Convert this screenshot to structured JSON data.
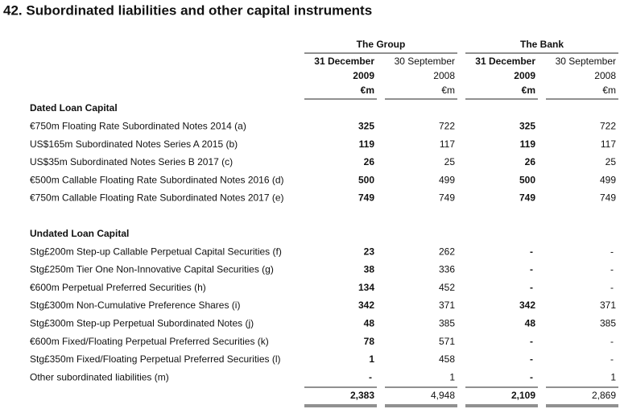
{
  "title": "42.  Subordinated liabilities and other capital instruments",
  "table": {
    "groups": [
      "The Group",
      "The Bank"
    ],
    "columns": [
      [
        "31 December",
        "2009",
        "€m"
      ],
      [
        "30 September",
        "2008",
        "€m"
      ],
      [
        "31 December",
        "2009",
        "€m"
      ],
      [
        "30 September",
        "2008",
        "€m"
      ]
    ],
    "sections": [
      {
        "heading": "Dated Loan Capital",
        "rows": [
          {
            "label": "€750m Floating Rate Subordinated Notes 2014 (a)",
            "cells": [
              "325",
              "722",
              "325",
              "722"
            ]
          },
          {
            "label": "US$165m Subordinated Notes Series A 2015 (b)",
            "cells": [
              "119",
              "117",
              "119",
              "117"
            ]
          },
          {
            "label": "US$35m Subordinated Notes Series B 2017 (c)",
            "cells": [
              "26",
              "25",
              "26",
              "25"
            ]
          },
          {
            "label": "€500m Callable Floating Rate Subordinated Notes 2016 (d)",
            "cells": [
              "500",
              "499",
              "500",
              "499"
            ]
          },
          {
            "label": "€750m Callable Floating Rate Subordinated Notes 2017 (e)",
            "cells": [
              "749",
              "749",
              "749",
              "749"
            ]
          }
        ]
      },
      {
        "heading": "Undated Loan Capital",
        "rows": [
          {
            "label": "Stg£200m Step-up Callable Perpetual Capital Securities (f)",
            "cells": [
              "23",
              "262",
              "-",
              "-"
            ]
          },
          {
            "label": "Stg£250m Tier One Non-Innovative Capital Securities  (g)",
            "cells": [
              "38",
              "336",
              "-",
              "-"
            ]
          },
          {
            "label": "€600m Perpetual Preferred Securities (h)",
            "cells": [
              "134",
              "452",
              "-",
              "-"
            ]
          },
          {
            "label": "Stg£300m Non-Cumulative Preference Shares (i)",
            "cells": [
              "342",
              "371",
              "342",
              "371"
            ]
          },
          {
            "label": "Stg£300m Step-up Perpetual Subordinated Notes (j)",
            "cells": [
              "48",
              "385",
              "48",
              "385"
            ]
          },
          {
            "label": "€600m Fixed/Floating Perpetual Preferred Securities (k)",
            "cells": [
              "78",
              "571",
              "-",
              "-"
            ]
          },
          {
            "label": "Stg£350m Fixed/Floating Perpetual Preferred Securities (l)",
            "cells": [
              "1",
              "458",
              "-",
              "-"
            ]
          },
          {
            "label": "Other subordinated liabilities (m)",
            "cells": [
              "-",
              "1",
              "-",
              "1"
            ]
          }
        ]
      }
    ],
    "total": [
      "2,383",
      "4,948",
      "2,109",
      "2,869"
    ]
  }
}
